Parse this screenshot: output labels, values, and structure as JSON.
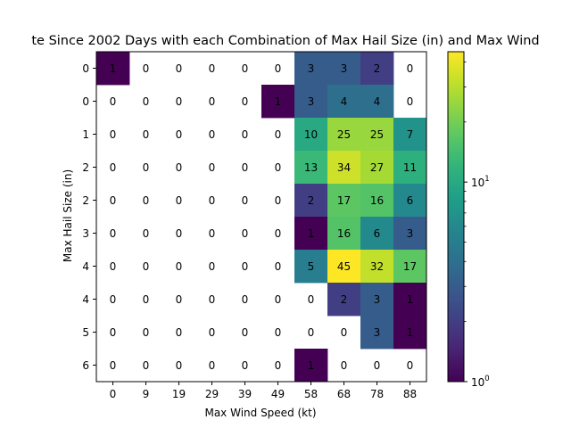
{
  "chart_data": {
    "type": "heatmap",
    "title": "te Since 2002 Days with each Combination of Max Hail Size (in) and Max Wind",
    "xlabel": "Max Wind Speed (kt)",
    "ylabel": "Max Hail Size (in)",
    "x_categories": [
      "0",
      "9",
      "19",
      "29",
      "39",
      "49",
      "58",
      "68",
      "78",
      "88"
    ],
    "y_categories": [
      "0",
      "0",
      "1",
      "2",
      "2",
      "3",
      "4",
      "4",
      "5",
      "6"
    ],
    "values": [
      [
        1,
        0,
        0,
        0,
        0,
        0,
        3,
        3,
        2,
        0
      ],
      [
        0,
        0,
        0,
        0,
        0,
        1,
        3,
        4,
        4,
        0
      ],
      [
        0,
        0,
        0,
        0,
        0,
        0,
        10,
        25,
        25,
        7
      ],
      [
        0,
        0,
        0,
        0,
        0,
        0,
        13,
        34,
        27,
        11
      ],
      [
        0,
        0,
        0,
        0,
        0,
        0,
        2,
        17,
        16,
        6
      ],
      [
        0,
        0,
        0,
        0,
        0,
        0,
        1,
        16,
        6,
        3
      ],
      [
        0,
        0,
        0,
        0,
        0,
        0,
        5,
        45,
        32,
        17
      ],
      [
        0,
        0,
        0,
        0,
        0,
        0,
        0,
        2,
        3,
        1
      ],
      [
        0,
        0,
        0,
        0,
        0,
        0,
        0,
        0,
        3,
        1
      ],
      [
        0,
        0,
        0,
        0,
        0,
        0,
        1,
        0,
        0,
        0
      ]
    ],
    "color_scale": "log",
    "colormap": "viridis",
    "color_range": [
      1,
      45
    ],
    "colorbar_ticks": [
      {
        "value": 1,
        "base": "10",
        "exp": "0"
      },
      {
        "value": 10,
        "base": "10",
        "exp": "1"
      }
    ],
    "zero_color": "#ffffff",
    "grid": false
  }
}
